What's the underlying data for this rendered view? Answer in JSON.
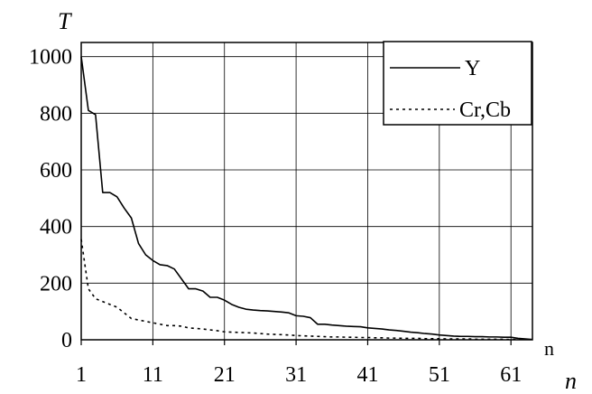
{
  "chart_data": {
    "type": "line",
    "title": "",
    "ylabel": "T",
    "xlabel": "n",
    "xlabel_inner": "n",
    "xlim": [
      1,
      64
    ],
    "ylim": [
      0,
      1050
    ],
    "x_ticks": [
      1,
      11,
      21,
      31,
      41,
      51,
      61
    ],
    "y_ticks": [
      0,
      200,
      400,
      600,
      800,
      1000
    ],
    "grid": true,
    "legend_position": "top-right",
    "series": [
      {
        "name": "Y",
        "style": "solid",
        "color": "#000000",
        "x": [
          1,
          2,
          3,
          4,
          5,
          6,
          7,
          8,
          9,
          10,
          11,
          12,
          13,
          14,
          15,
          16,
          17,
          18,
          19,
          20,
          21,
          22,
          23,
          24,
          25,
          26,
          27,
          28,
          29,
          30,
          31,
          32,
          33,
          34,
          35,
          36,
          37,
          38,
          39,
          40,
          41,
          42,
          43,
          44,
          45,
          46,
          47,
          48,
          49,
          50,
          51,
          52,
          53,
          54,
          55,
          56,
          57,
          58,
          59,
          60,
          61,
          62,
          63,
          64
        ],
        "values": [
          1000,
          810,
          795,
          520,
          520,
          505,
          465,
          430,
          340,
          300,
          280,
          265,
          262,
          250,
          215,
          180,
          180,
          172,
          150,
          150,
          140,
          125,
          115,
          108,
          105,
          103,
          102,
          100,
          98,
          95,
          85,
          83,
          78,
          55,
          55,
          52,
          50,
          48,
          47,
          46,
          42,
          40,
          38,
          35,
          33,
          30,
          27,
          25,
          22,
          20,
          17,
          15,
          13,
          12,
          12,
          11,
          11,
          10,
          10,
          9,
          9,
          5,
          3,
          1
        ]
      },
      {
        "name": "Cr,Cb",
        "style": "dotted",
        "color": "#000000",
        "x": [
          1,
          2,
          3,
          4,
          5,
          6,
          7,
          8,
          9,
          10,
          11,
          12,
          13,
          14,
          15,
          16,
          17,
          18,
          19,
          20,
          21,
          22,
          23,
          24,
          25,
          26,
          27,
          28,
          29,
          30,
          31,
          32,
          33,
          34,
          35,
          36,
          37,
          38,
          39,
          40,
          41,
          42,
          43,
          44,
          45,
          46,
          47,
          48,
          49,
          50,
          51,
          52,
          53,
          54,
          55,
          56,
          57,
          58,
          59,
          60,
          61,
          62,
          63,
          64
        ],
        "values": [
          355,
          180,
          145,
          135,
          125,
          115,
          95,
          75,
          70,
          65,
          60,
          55,
          50,
          50,
          48,
          42,
          40,
          38,
          35,
          32,
          28,
          27,
          26,
          25,
          24,
          22,
          20,
          19,
          18,
          17,
          15,
          14,
          13,
          12,
          11,
          10,
          10,
          9,
          9,
          8,
          8,
          7,
          7,
          6,
          6,
          5,
          5,
          5,
          4,
          4,
          4,
          3,
          3,
          3,
          3,
          2,
          2,
          2,
          2,
          2,
          1,
          1,
          1,
          1
        ]
      }
    ]
  }
}
